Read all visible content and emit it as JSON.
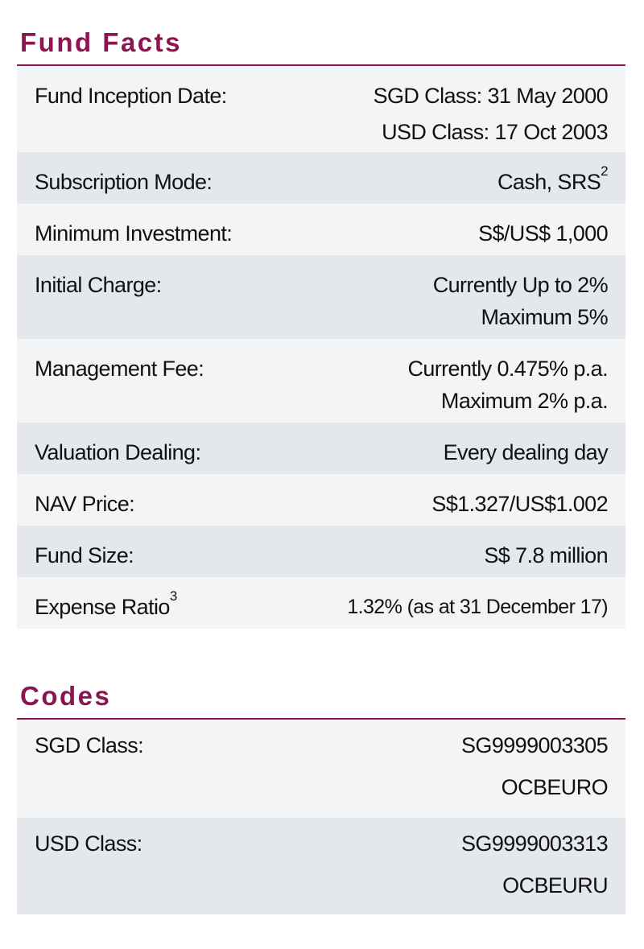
{
  "fund_facts": {
    "title": "Fund Facts",
    "rows": [
      {
        "label": "Fund Inception Date:",
        "values": [
          "SGD Class: 31 May 2000",
          "USD Class: 17 Oct 2003"
        ]
      },
      {
        "label": "Subscription Mode:",
        "value": "Cash, SRS",
        "value_sup": "2"
      },
      {
        "label": "Minimum Investment:",
        "value": "S$/US$ 1,000"
      },
      {
        "label": "Initial Charge:",
        "values": [
          "Currently Up to 2%",
          "Maximum 5%"
        ]
      },
      {
        "label": "Management Fee:",
        "values": [
          "Currently 0.475% p.a.",
          "Maximum 2% p.a."
        ]
      },
      {
        "label": "Valuation Dealing:",
        "value": "Every dealing day"
      },
      {
        "label": "NAV Price:",
        "value": "S$1.327/US$1.002"
      },
      {
        "label": "Fund Size:",
        "value": "S$ 7.8 million"
      },
      {
        "label": "Expense Ratio",
        "label_sup": "3",
        "value": "1.32% (as at 31 December 17)"
      }
    ]
  },
  "codes": {
    "title": "Codes",
    "rows": [
      {
        "label": "SGD Class:",
        "values": [
          "SG9999003305",
          "OCBEURO"
        ]
      },
      {
        "label": "USD Class:",
        "values": [
          "SG9999003313",
          "OCBEURU"
        ]
      }
    ]
  },
  "colors": {
    "accent": "#8c1450",
    "row_light": "#f2f4f6",
    "row_dark": "#e4e8ec"
  }
}
